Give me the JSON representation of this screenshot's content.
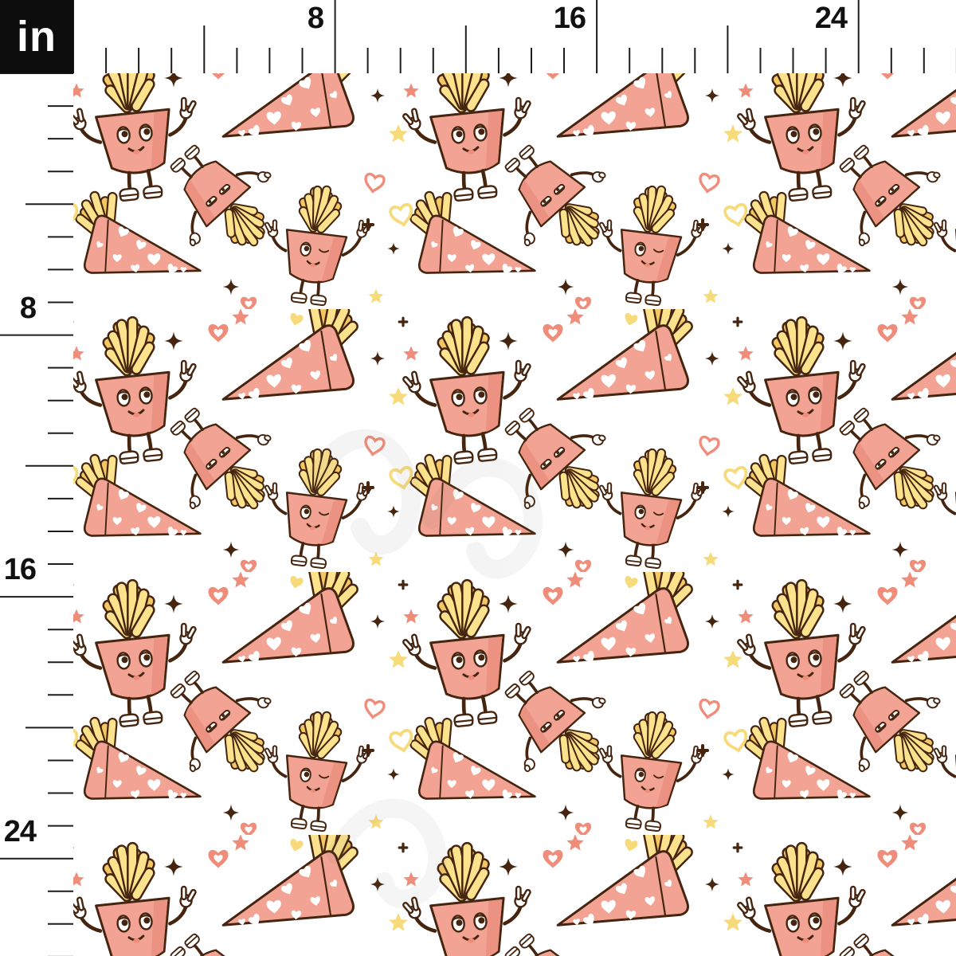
{
  "ruler": {
    "unit_label": "in",
    "top_numbers": [
      "8",
      "16",
      "24"
    ],
    "left_numbers": [
      "8",
      "16",
      "24"
    ]
  },
  "pattern": {
    "background": "#FFFFFF",
    "motifs": [
      "fries-cup-character",
      "fries-cup-wink-character",
      "tumbling-fries-cup-character",
      "heart-print-fries-cone",
      "coral-heart-white-center",
      "coral-outline-heart",
      "yellow-outline-heart",
      "coral-star",
      "yellow-star",
      "brown-sparkle",
      "plus-sparkle",
      "peace-hand-glove"
    ]
  },
  "colors": {
    "pink": "#F2A393",
    "pink_dark": "#EC9282",
    "fry_light": "#FCE28C",
    "fry_dark": "#F3C763",
    "outline": "#45250F",
    "coral": "#EF8C7A",
    "yellow": "#F7DB7B",
    "ruler_tick": "#1C1C1C",
    "unit_box_bg": "#0D0D0D",
    "unit_box_text": "#FFFFFF",
    "background": "#FFFFFF"
  }
}
